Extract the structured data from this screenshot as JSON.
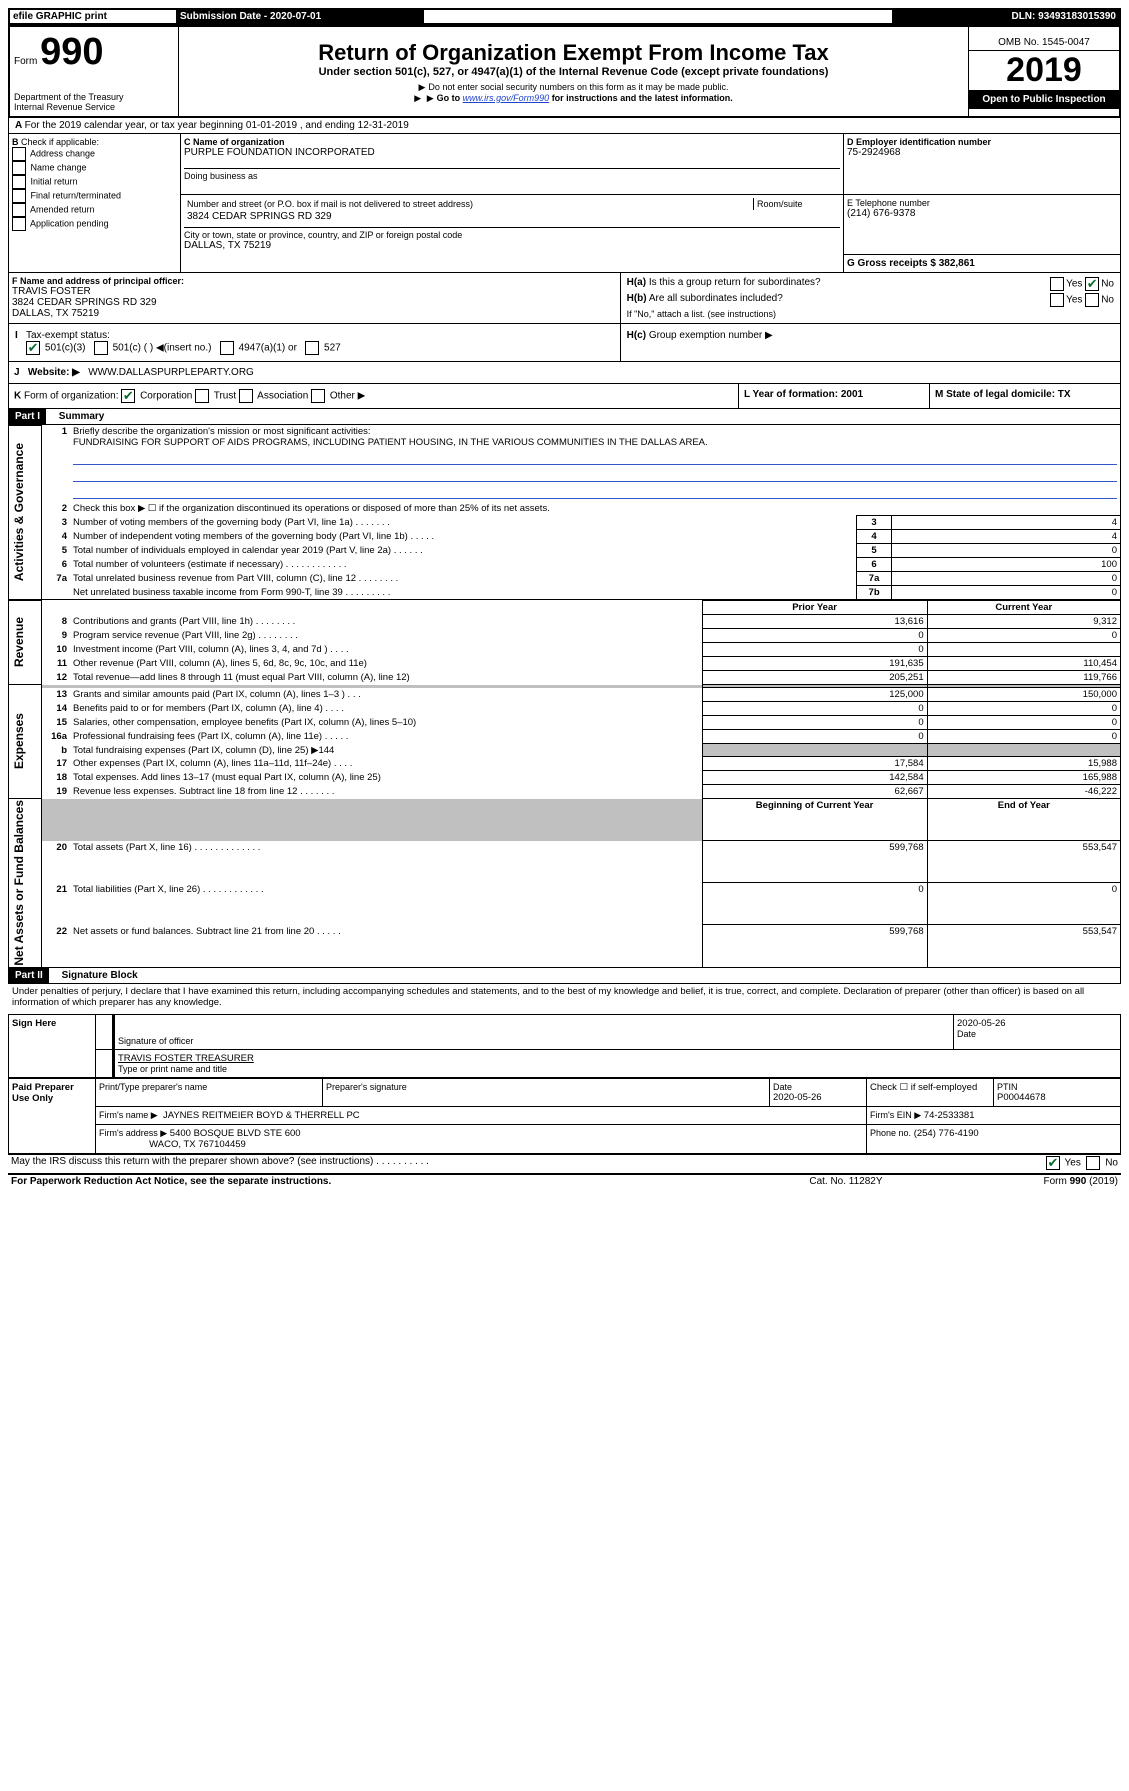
{
  "topbar": {
    "efile": "efile GRAPHIC print",
    "submission_label": "Submission Date - 2020-07-01",
    "dln_label": "DLN: 93493183015390"
  },
  "header": {
    "form_label_left": "Form",
    "form_number": "990",
    "dept": "Department of the Treasury\nInternal Revenue Service",
    "title": "Return of Organization Exempt From Income Tax",
    "subtitle": "Under section 501(c), 527, or 4947(a)(1) of the Internal Revenue Code (except private foundations)",
    "note1": "Do not enter social security numbers on this form as it may be made public.",
    "note2_pre": "Go to ",
    "note2_link": "www.irs.gov/Form990",
    "note2_post": " for instructions and the latest information.",
    "omb": "OMB No. 1545-0047",
    "year": "2019",
    "open_public": "Open to Public Inspection"
  },
  "periodA": "For the 2019 calendar year, or tax year beginning 01-01-2019    , and ending 12-31-2019",
  "sectionB": {
    "label": "Check if applicable:",
    "items": [
      "Address change",
      "Name change",
      "Initial return",
      "Final return/terminated",
      "Amended return",
      "Application pending"
    ]
  },
  "sectionC": {
    "name_label": "C Name of organization",
    "name": "PURPLE FOUNDATION INCORPORATED",
    "dba_label": "Doing business as",
    "addr_label": "Number and street (or P.O. box if mail is not delivered to street address)",
    "room_label": "Room/suite",
    "addr": "3824 CEDAR SPRINGS RD 329",
    "city_label": "City or town, state or province, country, and ZIP or foreign postal code",
    "city": "DALLAS, TX  75219"
  },
  "sectionD": {
    "label": "D Employer identification number",
    "value": "75-2924968"
  },
  "sectionE": {
    "label": "E Telephone number",
    "value": "(214) 676-9378"
  },
  "sectionG": {
    "label": "G Gross receipts $ 382,861"
  },
  "sectionF": {
    "label": "F  Name and address of principal officer:",
    "name": "TRAVIS FOSTER",
    "addr1": "3824 CEDAR SPRINGS RD 329",
    "addr2": "DALLAS, TX  75219"
  },
  "sectionH": {
    "a": "Is this a group return for subordinates?",
    "b": "Are all subordinates included?",
    "b_note": "If \"No,\" attach a list. (see instructions)",
    "c": "Group exemption number ▶",
    "yes": "Yes",
    "no": "No"
  },
  "taxExempt": {
    "label": "Tax-exempt status:",
    "c3": "501(c)(3)",
    "c": "501(c) (  ) ◀(insert no.)",
    "a1": "4947(a)(1) or",
    "s527": "527"
  },
  "sectionJ": {
    "label": "Website: ▶",
    "value": "WWW.DALLASPURPLEPARTY.ORG"
  },
  "sectionK": {
    "label": "Form of organization:",
    "corp": "Corporation",
    "trust": "Trust",
    "assoc": "Association",
    "other": "Other ▶"
  },
  "sectionL": {
    "label": "L Year of formation: 2001"
  },
  "sectionM": {
    "label": "M State of legal domicile: TX"
  },
  "part1": {
    "title": "Part I",
    "subtitle": "Summary",
    "q1": "Briefly describe the organization's mission or most significant activities:",
    "q1_text": "FUNDRAISING FOR SUPPORT OF AIDS PROGRAMS, INCLUDING PATIENT HOUSING, IN THE VARIOUS COMMUNITIES IN THE DALLAS AREA.",
    "q2": "Check this box ▶ ☐  if the organization discontinued its operations or disposed of more than 25% of its net assets.",
    "groups": {
      "gov": "Activities & Governance",
      "rev": "Revenue",
      "exp": "Expenses",
      "net": "Net Assets or Fund Balances"
    },
    "cols": {
      "prior": "Prior Year",
      "current": "Current Year",
      "beg": "Beginning of Current Year",
      "end": "End of Year"
    },
    "rows_gov": [
      {
        "n": "3",
        "t": "Number of voting members of the governing body (Part VI, line 1a)  .  .  .  .  .  .  .",
        "box": "3",
        "v": "4"
      },
      {
        "n": "4",
        "t": "Number of independent voting members of the governing body (Part VI, line 1b)  .  .  .  .  .",
        "box": "4",
        "v": "4"
      },
      {
        "n": "5",
        "t": "Total number of individuals employed in calendar year 2019 (Part V, line 2a)  .  .  .  .  .  .",
        "box": "5",
        "v": "0"
      },
      {
        "n": "6",
        "t": "Total number of volunteers (estimate if necessary)  .  .  .  .  .  .  .  .  .  .  .  .",
        "box": "6",
        "v": "100"
      },
      {
        "n": "7a",
        "t": "Total unrelated business revenue from Part VIII, column (C), line 12  .  .  .  .  .  .  .  .",
        "box": "7a",
        "v": "0"
      },
      {
        "n": "",
        "t": "Net unrelated business taxable income from Form 990-T, line 39  .  .  .  .  .  .  .  .  .",
        "box": "7b",
        "v": "0"
      }
    ],
    "rows_rev": [
      {
        "n": "8",
        "t": "Contributions and grants (Part VIII, line 1h)  .  .  .  .  .  .  .  .",
        "p": "13,616",
        "c": "9,312"
      },
      {
        "n": "9",
        "t": "Program service revenue (Part VIII, line 2g)  .  .  .  .  .  .  .  .",
        "p": "0",
        "c": "0"
      },
      {
        "n": "10",
        "t": "Investment income (Part VIII, column (A), lines 3, 4, and 7d )  .  .  .  .",
        "p": "0",
        "c": ""
      },
      {
        "n": "11",
        "t": "Other revenue (Part VIII, column (A), lines 5, 6d, 8c, 9c, 10c, and 11e)",
        "p": "191,635",
        "c": "110,454"
      },
      {
        "n": "12",
        "t": "Total revenue—add lines 8 through 11 (must equal Part VIII, column (A), line 12)",
        "p": "205,251",
        "c": "119,766"
      }
    ],
    "rows_exp": [
      {
        "n": "13",
        "t": "Grants and similar amounts paid (Part IX, column (A), lines 1–3 )  .  .  .",
        "p": "125,000",
        "c": "150,000"
      },
      {
        "n": "14",
        "t": "Benefits paid to or for members (Part IX, column (A), line 4)  .  .  .  .",
        "p": "0",
        "c": "0"
      },
      {
        "n": "15",
        "t": "Salaries, other compensation, employee benefits (Part IX, column (A), lines 5–10)",
        "p": "0",
        "c": "0"
      },
      {
        "n": "16a",
        "t": "Professional fundraising fees (Part IX, column (A), line 11e)  .  .  .  .  .",
        "p": "0",
        "c": "0"
      },
      {
        "n": "b",
        "t": "Total fundraising expenses (Part IX, column (D), line 25) ▶144",
        "p": "",
        "c": "",
        "gray": true
      },
      {
        "n": "17",
        "t": "Other expenses (Part IX, column (A), lines 11a–11d, 11f–24e)  .  .  .  .",
        "p": "17,584",
        "c": "15,988"
      },
      {
        "n": "18",
        "t": "Total expenses. Add lines 13–17 (must equal Part IX, column (A), line 25)",
        "p": "142,584",
        "c": "165,988"
      },
      {
        "n": "19",
        "t": "Revenue less expenses. Subtract line 18 from line 12  .  .  .  .  .  .  .",
        "p": "62,667",
        "c": "-46,222"
      }
    ],
    "rows_net": [
      {
        "n": "20",
        "t": "Total assets (Part X, line 16)  .  .  .  .  .  .  .  .  .  .  .  .  .",
        "p": "599,768",
        "c": "553,547"
      },
      {
        "n": "21",
        "t": "Total liabilities (Part X, line 26)  .  .  .  .  .  .  .  .  .  .  .  .",
        "p": "0",
        "c": "0"
      },
      {
        "n": "22",
        "t": "Net assets or fund balances. Subtract line 21 from line 20  .  .  .  .  .",
        "p": "599,768",
        "c": "553,547"
      }
    ]
  },
  "part2": {
    "title": "Part II",
    "subtitle": "Signature Block",
    "perjury": "Under penalties of perjury, I declare that I have examined this return, including accompanying schedules and statements, and to the best of my knowledge and belief, it is true, correct, and complete. Declaration of preparer (other than officer) is based on all information of which preparer has any knowledge.",
    "sign_here": "Sign Here",
    "sig_officer": "Signature of officer",
    "sig_date": "2020-05-26",
    "date_label": "Date",
    "officer_name": "TRAVIS FOSTER  TREASURER",
    "type_name": "Type or print name and title",
    "paid_prep": "Paid Preparer Use Only",
    "pp_name_label": "Print/Type preparer's name",
    "pp_sig_label": "Preparer's signature",
    "pp_date_label": "Date",
    "pp_date": "2020-05-26",
    "pp_check_label": "Check ☐ if self-employed",
    "ptin_label": "PTIN",
    "ptin": "P00044678",
    "firm_name_label": "Firm's name    ▶",
    "firm_name": "JAYNES REITMEIER BOYD & THERRELL PC",
    "firm_ein_label": "Firm's EIN ▶",
    "firm_ein": "74-2533381",
    "firm_addr_label": "Firm's address ▶",
    "firm_addr1": "5400 BOSQUE BLVD STE 600",
    "firm_addr2": "WACO, TX  767104459",
    "phone_label": "Phone no.",
    "phone": "(254) 776-4190",
    "discuss": "May the IRS discuss this return with the preparer shown above? (see instructions)  .  .  .  .  .  .  .  .  .  .",
    "yes": "Yes",
    "no": "No"
  },
  "footer": {
    "left": "For Paperwork Reduction Act Notice, see the separate instructions.",
    "center": "Cat. No. 11282Y",
    "right": "Form 990 (2019)"
  }
}
